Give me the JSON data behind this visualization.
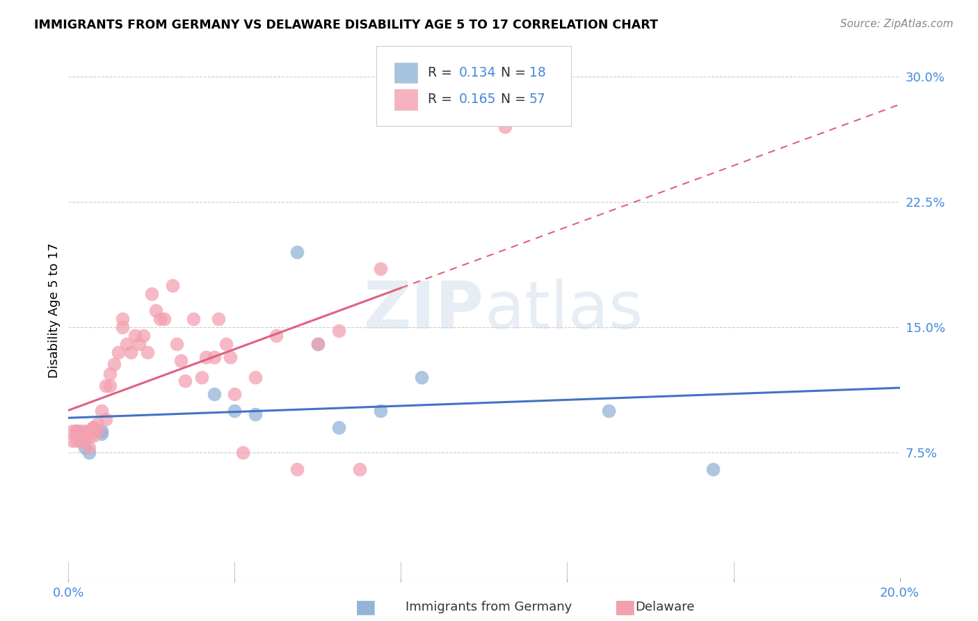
{
  "title": "IMMIGRANTS FROM GERMANY VS DELAWARE DISABILITY AGE 5 TO 17 CORRELATION CHART",
  "source": "Source: ZipAtlas.com",
  "ylabel": "Disability Age 5 to 17",
  "xlim": [
    0.0,
    0.2
  ],
  "ylim": [
    0.0,
    0.32
  ],
  "x_ticks": [
    0.0,
    0.04,
    0.08,
    0.12,
    0.16,
    0.2
  ],
  "y_ticks_right": [
    0.075,
    0.15,
    0.225,
    0.3
  ],
  "y_tick_labels_right": [
    "7.5%",
    "15.0%",
    "22.5%",
    "30.0%"
  ],
  "legend_R1": "0.134",
  "legend_N1": "18",
  "legend_R2": "0.165",
  "legend_N2": "57",
  "blue_color": "#92B4D8",
  "pink_color": "#F4A0B0",
  "trend_blue_color": "#4472C4",
  "trend_pink_color": "#E06080",
  "watermark": "ZIPatlas",
  "blue_scatter_x": [
    0.002,
    0.003,
    0.004,
    0.005,
    0.006,
    0.007,
    0.008,
    0.008,
    0.035,
    0.04,
    0.045,
    0.055,
    0.06,
    0.065,
    0.075,
    0.085,
    0.13,
    0.155
  ],
  "blue_scatter_y": [
    0.088,
    0.082,
    0.078,
    0.075,
    0.09,
    0.088,
    0.088,
    0.086,
    0.11,
    0.1,
    0.098,
    0.195,
    0.14,
    0.09,
    0.1,
    0.12,
    0.1,
    0.065
  ],
  "pink_scatter_x": [
    0.001,
    0.001,
    0.002,
    0.002,
    0.003,
    0.003,
    0.003,
    0.004,
    0.004,
    0.005,
    0.005,
    0.005,
    0.006,
    0.006,
    0.006,
    0.007,
    0.007,
    0.008,
    0.009,
    0.009,
    0.01,
    0.01,
    0.011,
    0.012,
    0.013,
    0.013,
    0.014,
    0.015,
    0.016,
    0.017,
    0.018,
    0.019,
    0.02,
    0.021,
    0.022,
    0.023,
    0.025,
    0.026,
    0.027,
    0.028,
    0.03,
    0.032,
    0.033,
    0.035,
    0.036,
    0.038,
    0.039,
    0.04,
    0.042,
    0.045,
    0.05,
    0.055,
    0.06,
    0.065,
    0.07,
    0.075,
    0.105
  ],
  "pink_scatter_y": [
    0.088,
    0.082,
    0.088,
    0.082,
    0.085,
    0.088,
    0.082,
    0.088,
    0.082,
    0.088,
    0.085,
    0.078,
    0.09,
    0.085,
    0.09,
    0.092,
    0.088,
    0.1,
    0.095,
    0.115,
    0.115,
    0.122,
    0.128,
    0.135,
    0.15,
    0.155,
    0.14,
    0.135,
    0.145,
    0.14,
    0.145,
    0.135,
    0.17,
    0.16,
    0.155,
    0.155,
    0.175,
    0.14,
    0.13,
    0.118,
    0.155,
    0.12,
    0.132,
    0.132,
    0.155,
    0.14,
    0.132,
    0.11,
    0.075,
    0.12,
    0.145,
    0.065,
    0.14,
    0.148,
    0.065,
    0.185,
    0.27
  ],
  "trend_blue_x_start": 0.0,
  "trend_blue_x_end": 0.2,
  "trend_pink_solid_x_end": 0.08,
  "trend_pink_dashed_x_end": 0.2
}
